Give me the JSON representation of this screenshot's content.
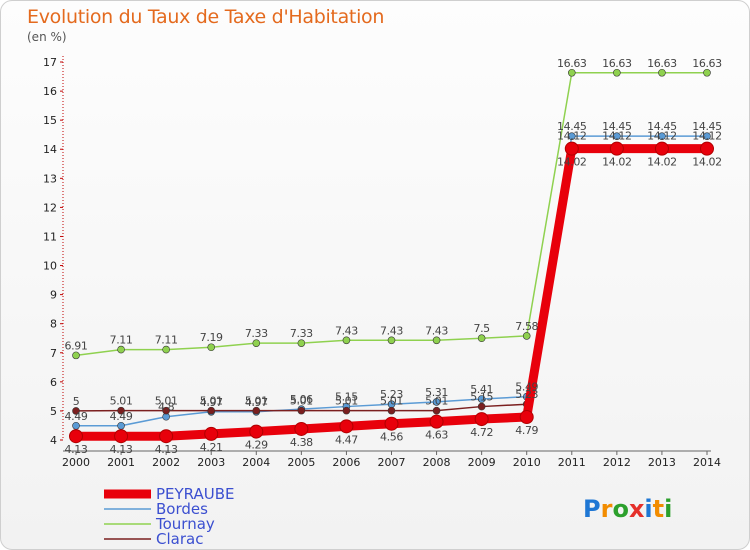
{
  "title": "Evolution du Taux de Taxe d'Habitation",
  "unit_label": "(en %)",
  "logo": "Proxiti",
  "chart_data": {
    "type": "line",
    "title": "Evolution du Taux de Taxe d'Habitation",
    "ylabel": "(en %)",
    "xlabel": "",
    "x": [
      "2000",
      "2001",
      "2002",
      "2003",
      "2004",
      "2005",
      "2006",
      "2007",
      "2008",
      "2009",
      "2010",
      "2011",
      "2012",
      "2013",
      "2014"
    ],
    "ylim": [
      4,
      17
    ],
    "yticks": [
      4,
      5,
      6,
      7,
      8,
      9,
      10,
      11,
      12,
      13,
      14,
      15,
      16,
      17
    ],
    "grid": false,
    "legend_position": "bottom-left",
    "series": [
      {
        "name": "PEYRAUBE",
        "color": "#e8000b",
        "values": [
          4.13,
          4.13,
          4.13,
          4.21,
          4.29,
          4.38,
          4.47,
          4.56,
          4.63,
          4.72,
          4.79,
          14.02,
          14.02,
          14.02,
          14.02
        ],
        "labels": [
          "4.13",
          "4.13",
          "4.13",
          "4.21",
          "4.29",
          "4.38",
          "4.47",
          "4.56",
          "4.63",
          "4.72",
          "4.79",
          "14.02",
          "14.02",
          "14.02",
          "14.02"
        ]
      },
      {
        "name": "Bordes",
        "color": "#5b9bd5",
        "values": [
          4.49,
          4.49,
          4.8,
          4.97,
          4.97,
          5.06,
          5.15,
          5.23,
          5.31,
          5.41,
          5.49,
          14.45,
          14.45,
          14.45,
          14.45
        ],
        "labels": [
          "4.49",
          "4.49",
          "4.8",
          "4.97",
          "4.97",
          "5.06",
          "5.15",
          "5.23",
          "5.31",
          "5.41",
          "5.49",
          "14.45",
          "14.45",
          "14.45",
          "14.45"
        ]
      },
      {
        "name": "Tournay",
        "color": "#8fd14f",
        "values": [
          6.91,
          7.11,
          7.11,
          7.19,
          7.33,
          7.33,
          7.43,
          7.43,
          7.43,
          7.5,
          7.58,
          16.63,
          16.63,
          16.63,
          16.63
        ],
        "labels": [
          "6.91",
          "7.11",
          "7.11",
          "7.19",
          "7.33",
          "7.33",
          "7.43",
          "7.43",
          "7.43",
          "7.5",
          "7.58",
          "16.63",
          "16.63",
          "16.63",
          "16.63"
        ]
      },
      {
        "name": "Clarac",
        "color": "#7b1f1f",
        "values": [
          5,
          5.01,
          5.01,
          5.01,
          5.01,
          5.01,
          5.01,
          5.01,
          5.01,
          5.15,
          5.23,
          14.12,
          14.12,
          14.12,
          14.12
        ],
        "labels": [
          "5",
          "5.01",
          "5.01",
          "5.01",
          "5.01",
          "5.01",
          "5.01",
          "5.01",
          "5.01",
          "5.15",
          "5.23",
          "14.12",
          "14.12",
          "14.12",
          "14.12"
        ]
      }
    ]
  }
}
